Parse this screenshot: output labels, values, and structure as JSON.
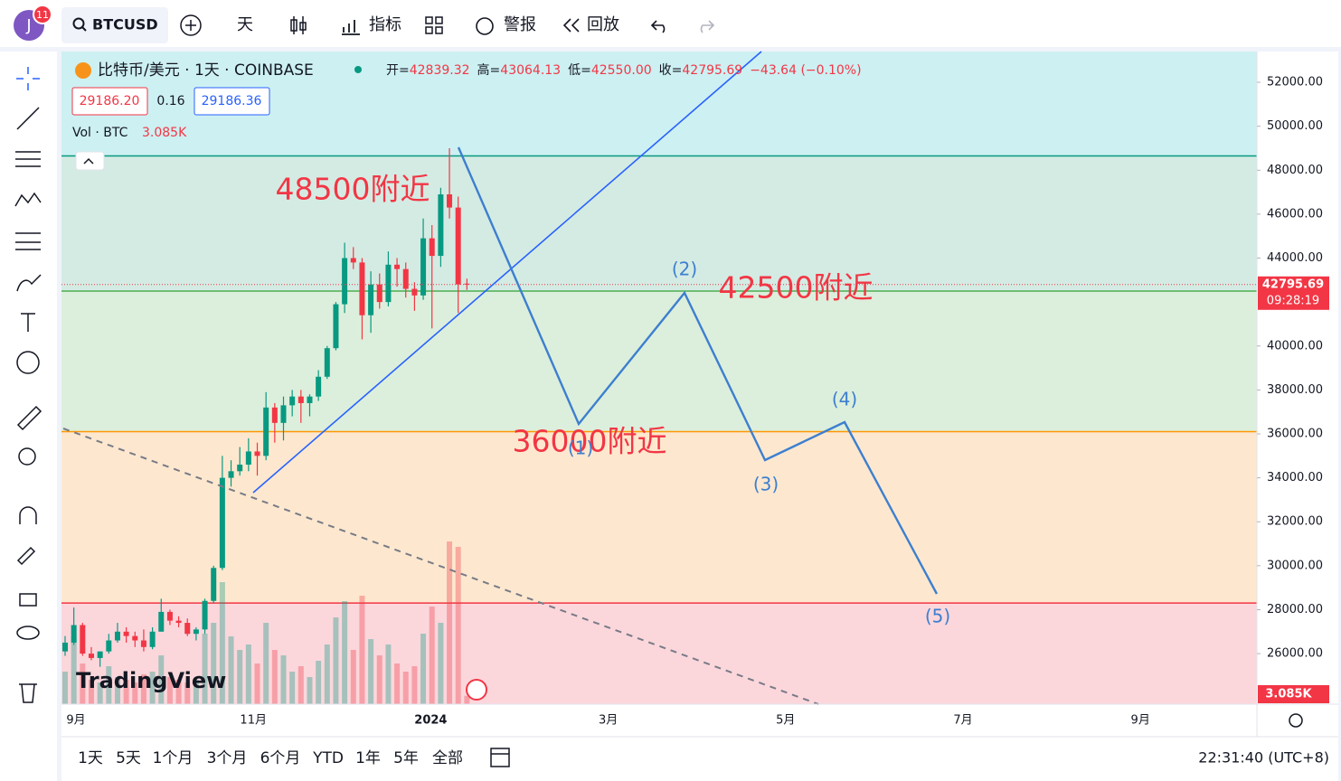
{
  "toolbar": {
    "avatar": "J",
    "badge": "11",
    "symbol": "BTCUSD",
    "interval": "天",
    "indicators": "指标",
    "alerts": "警报",
    "replay": "回放"
  },
  "legend": {
    "title": "比特币/美元 · 1天 · COINBASE",
    "labels": [
      "开=",
      "高=",
      "低=",
      "收="
    ],
    "values": [
      "42839.32",
      "43064.13",
      "42550.00",
      "42795.69"
    ],
    "change": "−43.64 (−0.10%)",
    "bid": "29186.20",
    "spread": "0.16",
    "ask": "29186.36",
    "vol_label": "Vol · BTC",
    "vol_value": "3.085K"
  },
  "chart_data": {
    "type": "candlestick",
    "up_color": "#089981",
    "down_color": "#f23645",
    "candles": {
      "open": [
        26100,
        26500,
        27300,
        26000,
        25800,
        26100,
        26600,
        27000,
        26800,
        26600,
        26300,
        27000,
        27900,
        27500,
        27400,
        26900,
        27100,
        28400,
        29900,
        34000,
        34300,
        34600,
        35200,
        35000,
        37200,
        36500,
        37300,
        37700,
        37400,
        37700,
        38600,
        39900,
        41900,
        44000,
        43800,
        41400,
        42800,
        42000,
        43700,
        43500,
        42600,
        42300,
        44900,
        44100,
        46900,
        46300,
        42839.32
      ],
      "high": [
        26800,
        28100,
        27400,
        26300,
        26100,
        26900,
        27400,
        27200,
        27000,
        27100,
        27200,
        28500,
        28000,
        27700,
        27600,
        27200,
        28500,
        30000,
        35000,
        34800,
        35400,
        35800,
        35600,
        37900,
        37400,
        37700,
        38000,
        38000,
        37800,
        38900,
        40000,
        42000,
        44700,
        44500,
        44000,
        43400,
        43300,
        44300,
        44000,
        43800,
        42900,
        45800,
        45500,
        47200,
        49000,
        46800,
        43064.13
      ],
      "low": [
        25900,
        26400,
        25900,
        25700,
        25400,
        26000,
        26500,
        26500,
        26300,
        26100,
        26200,
        27000,
        27300,
        27200,
        26800,
        26600,
        26900,
        28300,
        29800,
        33600,
        34100,
        34300,
        34100,
        34800,
        35600,
        35700,
        36800,
        36500,
        36800,
        37500,
        38500,
        39800,
        41500,
        43500,
        40300,
        40600,
        41700,
        41800,
        42700,
        42200,
        41600,
        42100,
        40800,
        43600,
        45800,
        41500,
        42550
      ],
      "close": [
        26500,
        27300,
        26000,
        25800,
        26100,
        26600,
        27000,
        26800,
        26600,
        26300,
        27000,
        27900,
        27500,
        27400,
        26900,
        27100,
        28400,
        29900,
        34000,
        34300,
        34600,
        35200,
        35000,
        37200,
        36500,
        37300,
        37700,
        37400,
        37700,
        38600,
        39900,
        41900,
        44000,
        43800,
        41400,
        42800,
        42000,
        43700,
        43500,
        42600,
        42300,
        44900,
        44100,
        46900,
        46300,
        42800,
        42795.69
      ]
    },
    "volumes": [
      12000,
      25000,
      15000,
      9000,
      8000,
      14000,
      10000,
      9000,
      8000,
      11000,
      12000,
      18000,
      10000,
      9000,
      8000,
      9000,
      26000,
      30000,
      45000,
      25000,
      20000,
      22000,
      15000,
      30000,
      20000,
      18000,
      12000,
      14000,
      10000,
      16000,
      22000,
      32000,
      38000,
      20000,
      40000,
      24000,
      18000,
      22000,
      15000,
      12000,
      14000,
      26000,
      36000,
      30000,
      60000,
      58000,
      3085
    ],
    "ylim": [
      23700,
      53400
    ],
    "yticks": [
      {
        "value": 26000,
        "label": "26000.00"
      },
      {
        "value": 28000,
        "label": "28000.00"
      },
      {
        "value": 30000,
        "label": "30000.00"
      },
      {
        "value": 32000,
        "label": "32000.00"
      },
      {
        "value": 34000,
        "label": "34000.00"
      },
      {
        "value": 36000,
        "label": "36000.00"
      },
      {
        "value": 38000,
        "label": "38000.00"
      },
      {
        "value": 40000,
        "label": "40000.00"
      },
      {
        "value": 44000,
        "label": "44000.00"
      },
      {
        "value": 46000,
        "label": "46000.00"
      },
      {
        "value": 48000,
        "label": "48000.00"
      },
      {
        "value": 50000,
        "label": "50000.00"
      },
      {
        "value": 52000,
        "label": "52000.00"
      }
    ],
    "x_labels": [
      "9月",
      "11月",
      "2024",
      "3月",
      "5月",
      "7月",
      "9月"
    ],
    "levels": [
      {
        "value": 48650,
        "color": "#089981"
      },
      {
        "value": 42500,
        "color": "#4caf50"
      },
      {
        "value": 36100,
        "color": "#ff9800"
      },
      {
        "value": 28300,
        "color": "#f23645"
      }
    ],
    "zone_colors": [
      "#cdf0f2",
      "#d4ebe3",
      "#dcefdc",
      "#fde8cf",
      "#fbd7dc"
    ],
    "price_tag": "42795.69",
    "countdown": "09:28:19",
    "vol_tag": "3.085K",
    "annotations": [
      "48500附近",
      "42500附近",
      "36000附近"
    ],
    "wave_labels": [
      "(1)",
      "(2)",
      "(3)",
      "(4)",
      "(5)"
    ]
  },
  "logo": "TradingView",
  "bottom_bar": {
    "ranges": [
      "1天",
      "5天",
      "1个月",
      "3个月",
      "6个月",
      "YTD",
      "1年",
      "5年",
      "全部"
    ],
    "clock": "22:31:40 (UTC+8)"
  }
}
